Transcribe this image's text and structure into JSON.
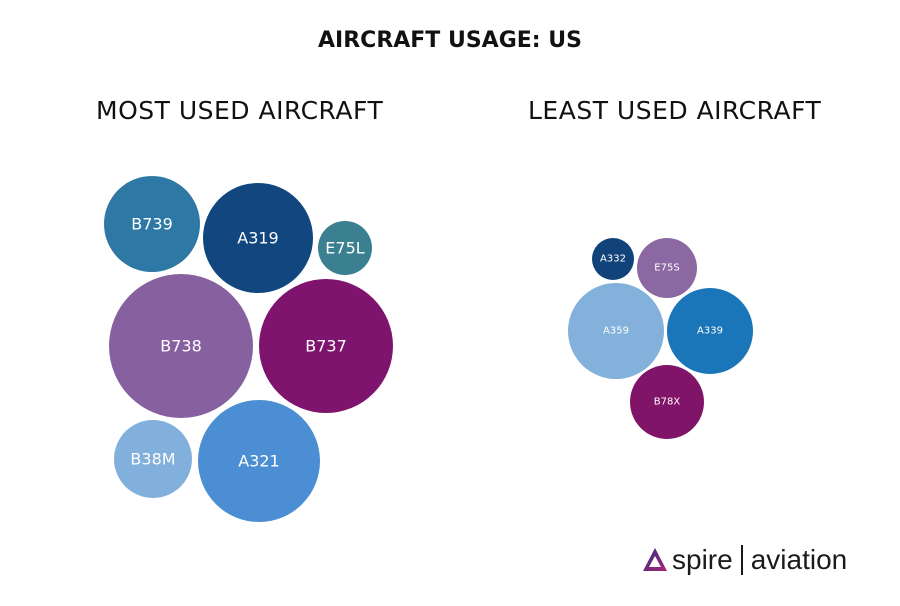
{
  "title": "AIRCRAFT USAGE: US",
  "chart_data": [
    {
      "type": "bubble",
      "title": "MOST USED AIRCRAFT",
      "note_values": "relative (bubble area)",
      "bubbles": [
        {
          "label": "B739",
          "value": 2304,
          "color": "#2e78a6"
        },
        {
          "label": "A319",
          "value": 3025,
          "color": "#12467e"
        },
        {
          "label": "E75L",
          "value": 729,
          "color": "#3b8090"
        },
        {
          "label": "B738",
          "value": 5184,
          "color": "#8760a0"
        },
        {
          "label": "B737",
          "value": 4489,
          "color": "#7f146e"
        },
        {
          "label": "B38M",
          "value": 1521,
          "color": "#82b0dc"
        },
        {
          "label": "A321",
          "value": 3721,
          "color": "#4b8ed3"
        }
      ]
    },
    {
      "type": "bubble",
      "title": "LEAST USED AIRCRAFT",
      "bubbles": [
        {
          "label": "A332",
          "value": 441,
          "color": "#12427a"
        },
        {
          "label": "E75S",
          "value": 900,
          "color": "#8c68a2"
        },
        {
          "label": "A359",
          "value": 2304,
          "color": "#84b1dc"
        },
        {
          "label": "A339",
          "value": 1849,
          "color": "#1a76b8"
        },
        {
          "label": "B78X",
          "value": 1369,
          "color": "#801468"
        }
      ]
    }
  ],
  "logo": {
    "brand": "spire",
    "product": "aviation"
  }
}
